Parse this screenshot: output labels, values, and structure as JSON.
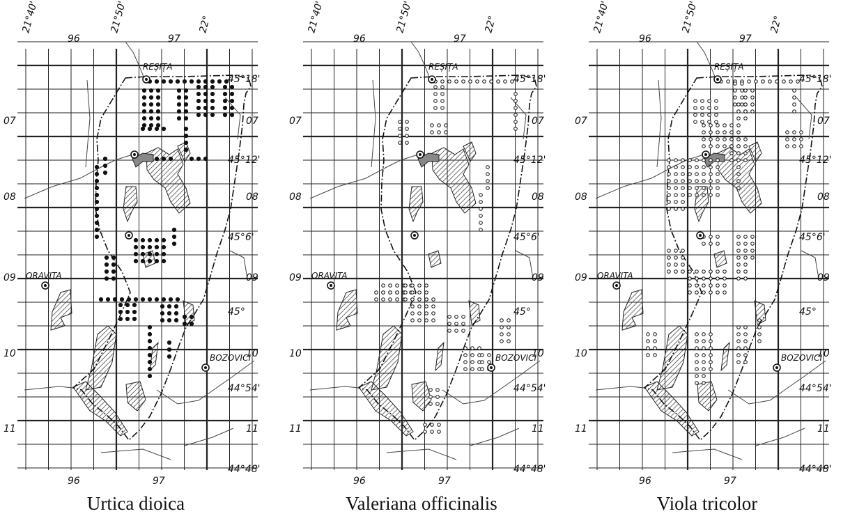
{
  "maps": [
    {
      "species": "Urtica dioica",
      "marker": "filled"
    },
    {
      "species": "Valeriana officinalis",
      "marker": "open"
    },
    {
      "species": "Viola tricolor",
      "marker": "open"
    }
  ],
  "labels": {
    "lon_top": [
      "21°40'",
      "21°50'",
      "22°"
    ],
    "grid_top": [
      "96",
      "97"
    ],
    "grid_bottom": [
      "96",
      "97"
    ],
    "rows_left": [
      "07",
      "08",
      "09",
      "10",
      "11"
    ],
    "rows_right": [
      "07",
      "08",
      "09",
      "10",
      "11"
    ],
    "lat_right": [
      "45°18'",
      "45°12'",
      "45°6'",
      "45°",
      "44°54'",
      "44°48'"
    ],
    "towns": {
      "resita": "REȘIȚA",
      "oravita": "ORAVITA",
      "bozovici": "BOZOVICI"
    }
  }
}
